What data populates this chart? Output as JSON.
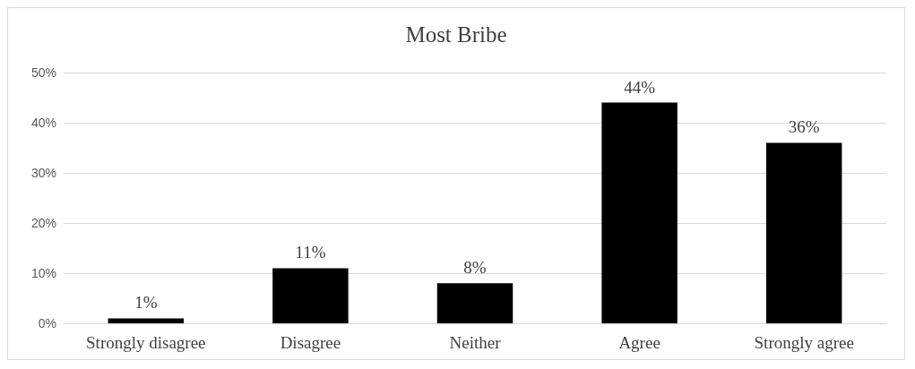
{
  "chart_data": {
    "type": "bar",
    "title": "Most Bribe",
    "categories": [
      "Strongly disagree",
      "Disagree",
      "Neither",
      "Agree",
      "Strongly agree"
    ],
    "values": [
      1,
      11,
      8,
      44,
      36
    ],
    "value_labels": [
      "1%",
      "11%",
      "8%",
      "44%",
      "36%"
    ],
    "color": "#000000",
    "ylim": [
      0,
      50
    ],
    "yticks": [
      {
        "value": 0,
        "label": "0%"
      },
      {
        "value": 10,
        "label": "10%"
      },
      {
        "value": 20,
        "label": "20%"
      },
      {
        "value": 30,
        "label": "30%"
      },
      {
        "value": 40,
        "label": "40%"
      },
      {
        "value": 50,
        "label": "50%"
      }
    ],
    "grid": "y"
  }
}
